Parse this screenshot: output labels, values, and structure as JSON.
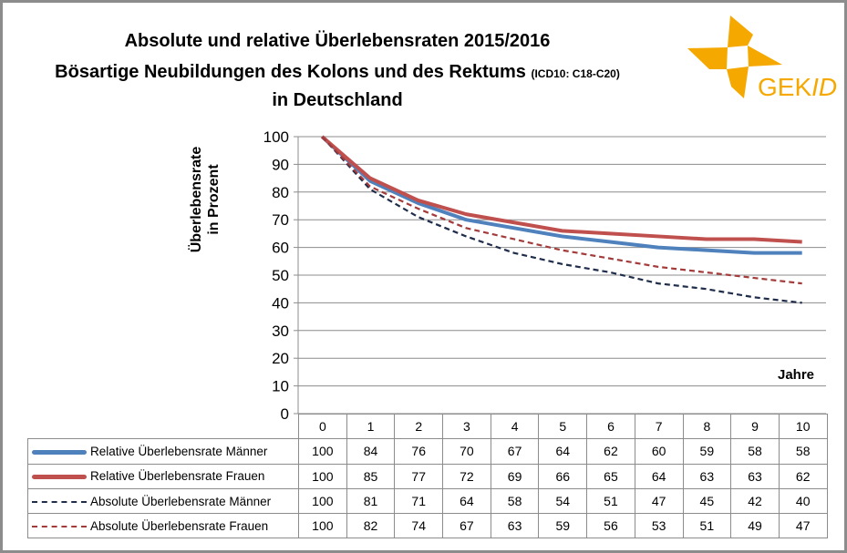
{
  "title_line1": "Absolute und relative Überlebensraten 2015/2016",
  "title_line2": "Bösartige Neubildungen des Kolons und des Rektums",
  "title_line2_small": "(ICD10: C18-C20)",
  "title_line3": "in Deutschland",
  "logo": {
    "text": "GEKID",
    "color": "#f5a800"
  },
  "chart_data": {
    "type": "line",
    "ylabel": "Überlebensrate in Prozent",
    "ylabel_line1": "Überlebensrate",
    "ylabel_line2": "in Prozent",
    "xlabel": "Jahre",
    "ylim": [
      0,
      100
    ],
    "yticks": [
      0,
      10,
      20,
      30,
      40,
      50,
      60,
      70,
      80,
      90,
      100
    ],
    "grid": true,
    "legend": "data-table-below",
    "categories": [
      "0",
      "1",
      "2",
      "3",
      "4",
      "5",
      "6",
      "7",
      "8",
      "9",
      "10"
    ],
    "series": [
      {
        "name": "Relative Überlebensrate Männer",
        "color": "#4f81bd",
        "style": "solid",
        "values": [
          100,
          84,
          76,
          70,
          67,
          64,
          62,
          60,
          59,
          58,
          58
        ]
      },
      {
        "name": "Relative Überlebensrate Frauen",
        "color": "#c0504d",
        "style": "solid",
        "values": [
          100,
          85,
          77,
          72,
          69,
          66,
          65,
          64,
          63,
          63,
          62
        ]
      },
      {
        "name": "Absolute Überlebensrate Männer",
        "color": "#1f2d4a",
        "style": "dashed",
        "values": [
          100,
          81,
          71,
          64,
          58,
          54,
          51,
          47,
          45,
          42,
          40
        ]
      },
      {
        "name": "Absolute Überlebensrate Frauen",
        "color": "#a33b3b",
        "style": "dashed",
        "values": [
          100,
          82,
          74,
          67,
          63,
          59,
          56,
          53,
          51,
          49,
          47
        ]
      }
    ]
  }
}
